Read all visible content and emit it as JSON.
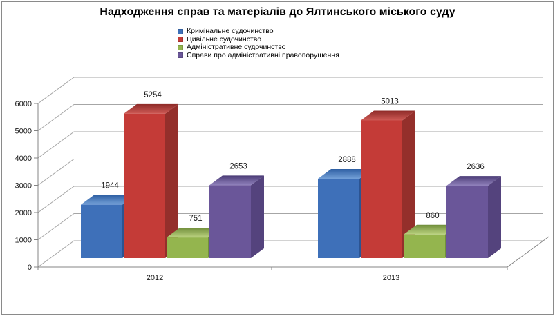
{
  "title": "Надходження справ та матеріалів до Ялтинського міського суду",
  "chart_data": {
    "type": "bar",
    "subtype": "3d-clustered-column",
    "title": "Надходження справ та матеріалів до Ялтинського міського суду",
    "categories": [
      "2012",
      "2013"
    ],
    "series": [
      {
        "name": "Кримінальне судочинство",
        "values": [
          1944,
          2888
        ],
        "color": "#3E70B9",
        "side_color": "#2C5492",
        "top_gradient": [
          "#2E5FA3",
          "#74A0D8"
        ]
      },
      {
        "name": "Цивільне судочинство",
        "values": [
          5254,
          5013
        ],
        "color": "#C43B37",
        "side_color": "#942F2B",
        "top_gradient": [
          "#8E2B28",
          "#CE5A55"
        ]
      },
      {
        "name": "Адміністративне судочинство",
        "values": [
          751,
          860
        ],
        "color": "#94B54E",
        "side_color": "#70903A",
        "top_gradient": [
          "#6F8D39",
          "#BCD381"
        ]
      },
      {
        "name": "Справи про адміністративні правопорушення",
        "values": [
          2653,
          2636
        ],
        "color": "#6A5699",
        "side_color": "#54437D",
        "top_gradient": [
          "#4A3B76",
          "#9182BC"
        ]
      }
    ],
    "value_labels": true,
    "xlabel": "",
    "ylabel": "",
    "ylim": [
      0,
      6000
    ],
    "ytick_step": 1000,
    "yticks": [
      "0",
      "1000",
      "2000",
      "3000",
      "4000",
      "5000",
      "6000"
    ],
    "grid": true,
    "legend_position": "top"
  },
  "colors": {
    "background": "#FFFFFF",
    "border": "#8A8A8A",
    "gridline": "#A6A6A6",
    "axis": "#848484",
    "text": "#1A1A1A"
  }
}
